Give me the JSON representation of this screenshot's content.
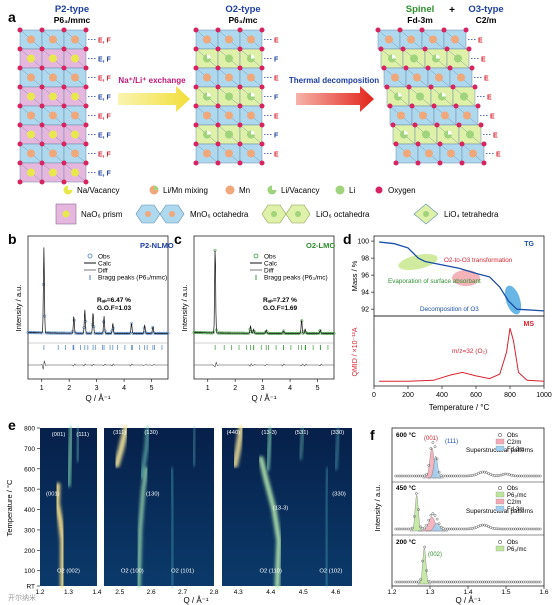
{
  "panel_a": {
    "letter": "a",
    "p2": {
      "name": "P2-type",
      "group": "P6₃/mmc"
    },
    "o2": {
      "name": "O2-type",
      "group": "P6₃/mc"
    },
    "final_spinel": {
      "name": "Spinel",
      "group": "Fd-3m"
    },
    "final_plus": "+",
    "final_o3": {
      "name": "O3-type",
      "group": "C2/m"
    },
    "arrow1": "Na⁺/Li⁺ exchange",
    "arrow2": "Thermal decomposition",
    "tag_e": "E",
    "tag_f": "F",
    "tag_ef": "E, F",
    "legend_row1": [
      "Na/Vacancy",
      "Li/Mn mixing",
      "Mn",
      "Li/Vacancy",
      "Li",
      "Oxygen"
    ],
    "legend_row2": [
      "NaO₆ prism",
      "MnO₆ octahedra",
      "LiO₆ octahedra",
      "LiO₄ tetrahedra"
    ],
    "colors": {
      "na": "#e8e84c",
      "limn": "#f0a87a",
      "mn": "#f0a87a",
      "li": "#9fd37c",
      "oxygen": "#d9235f",
      "prism": "#e6b7de",
      "octa_blue": "#aed8ee",
      "octa_green": "#dff0a8",
      "arrow1": "#f3e86a",
      "arrow2": "#e2231a"
    }
  },
  "panel_b": {
    "letter": "b",
    "title": "P2-NLMO",
    "legend": [
      "Obs",
      "Calc",
      "Diff",
      "Bragg peaks (P6₃/mmc)"
    ],
    "stats": [
      "Rᵤₚ=6.47 %",
      "G.O.F=1.03"
    ],
    "ylabel": "Intensity / a.u.",
    "xlabel": "Q / Å⁻¹",
    "xticks": [
      "1",
      "2",
      "3",
      "4",
      "5"
    ],
    "colors": {
      "obs": "#4a7fc1",
      "calc": "#1a1a1a",
      "bragg": "#4a7fc1"
    }
  },
  "panel_c": {
    "letter": "c",
    "title": "O2-LMO",
    "legend": [
      "Obs",
      "Calc",
      "Diff",
      "Bragg peaks (P6₃/mc)"
    ],
    "stats": [
      "Rᵤₚ=7.27 %",
      "G.O.F=1.69"
    ],
    "ylabel": "Intensity / a.u.",
    "xlabel": "Q / Å⁻¹",
    "xticks": [
      "1",
      "2",
      "3",
      "4",
      "5"
    ],
    "colors": {
      "obs": "#3a9a3a",
      "calc": "#1a1a1a",
      "bragg": "#3a9a3a"
    }
  },
  "panel_d": {
    "letter": "d",
    "tg_label": "TG",
    "ms_label": "MS",
    "ann_evap": "Evaporation of surface absorbant",
    "ann_transform": "O2-to-O3 transformation",
    "ann_decomp": "Decomposition of O3",
    "ms_ann": "m/z=32 (O₂)",
    "ylabel_tg": "Mass / %",
    "ylabel_ms": "QMID / ×10⁻¹²A",
    "xlabel": "Temperature / °C",
    "tg_yticks": [
      "100",
      "98",
      "96",
      "94",
      "92"
    ],
    "xticks": [
      "0",
      "200",
      "400",
      "600",
      "800",
      "1000"
    ],
    "colors": {
      "tg": "#1a4fa8",
      "ms": "#d9232f",
      "evap": "#c8e88c",
      "transform": "#f0a0a8",
      "decomp": "#4ea9e0"
    }
  },
  "panel_e": {
    "letter": "e",
    "ylabel": "Temperature / °C",
    "xlabel": "Q / Å⁻¹",
    "yticks": [
      "800",
      "700",
      "600",
      "500",
      "400",
      "300",
      "200",
      "100",
      "RT"
    ],
    "sub1": {
      "xticks": [
        "1.2",
        "1.3",
        "1.4"
      ],
      "labels": [
        "(001)",
        "(111)",
        "(001)",
        "O2 (002)"
      ]
    },
    "sub2": {
      "xticks": [
        "2.5",
        "2.6",
        "2.7",
        "2.8"
      ],
      "labels": [
        "(311)",
        "(130)",
        "(130)",
        "O2 (100)",
        "O2 (101)"
      ]
    },
    "sub3": {
      "xticks": [
        "4.3",
        "4.4",
        "4.5",
        "4.6"
      ],
      "labels": [
        "(440)",
        "(13-3)",
        "(531)",
        "(330)",
        "(13-3)",
        "(330)",
        "O2 (110)",
        "O2 (102)"
      ]
    }
  },
  "panel_f": {
    "letter": "f",
    "ylabel": "Intensity / a.u.",
    "xlabel": "Q / Å⁻¹",
    "xticks": [
      "1.2",
      "1.3",
      "1.4",
      "1.5",
      "1.6"
    ],
    "t600": {
      "temp": "600 °C",
      "legend": [
        "Obs",
        "C2/m",
        "Fd-3m"
      ],
      "note": "Superstructural patterns",
      "peaks": [
        "(001)",
        "(111)"
      ]
    },
    "t450": {
      "temp": "450 °C",
      "legend": [
        "Obs",
        "P6₃/mc",
        "C2/m",
        "Fd-3m"
      ],
      "note": "Superstructural patterns"
    },
    "t200": {
      "temp": "200 °C",
      "legend": [
        "Obs",
        "P6₃/mc"
      ],
      "peaks": [
        "(002)"
      ]
    },
    "colors": {
      "p6": "#bde69a",
      "c2m": "#f4a9b4",
      "fd3m": "#9fd0f0"
    }
  },
  "watermark": "开尔纳米"
}
